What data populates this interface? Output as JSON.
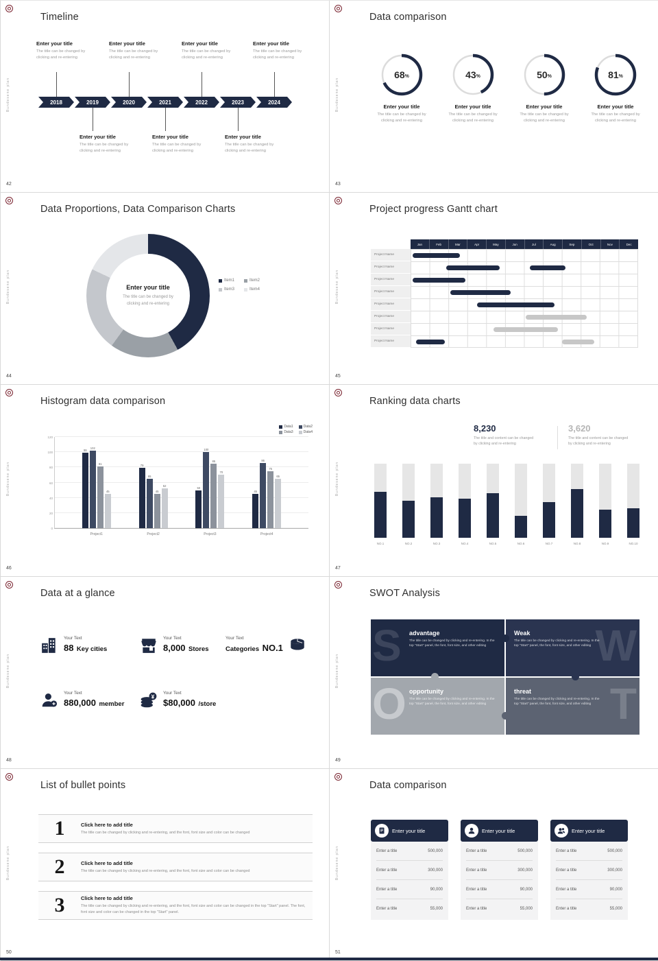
{
  "page": {
    "vertical_label": "Bundesene plan"
  },
  "shared": {
    "enter_title": "Enter your title",
    "cap1": "The title can be changed by",
    "cap2": "clicking and re-entering"
  },
  "timeline": {
    "number": "42",
    "title": "Timeline",
    "years": [
      "2018",
      "2019",
      "2020",
      "2021",
      "2022",
      "2023",
      "2024"
    ]
  },
  "rings": {
    "number": "43",
    "title": "Data comparison",
    "percent_sign": "%",
    "values": [
      68,
      43,
      50,
      81
    ]
  },
  "donut": {
    "number": "44",
    "title": "Data Proportions, Data Comparison Charts",
    "chart": {
      "type": "pie",
      "segments": [
        {
          "label": "Item1",
          "value": 42,
          "color": "#1F2A44"
        },
        {
          "label": "Item2",
          "value": 18,
          "color": "#9AA0A6"
        },
        {
          "label": "Item3",
          "value": 22,
          "color": "#C4C7CC"
        },
        {
          "label": "Item4",
          "value": 18,
          "color": "#E4E6E9"
        }
      ]
    }
  },
  "gantt": {
    "number": "45",
    "title": "Project progress Gantt chart",
    "months": [
      "Jan",
      "Feb",
      "Mar",
      "Apr",
      "May",
      "Jun",
      "Jul",
      "Aug",
      "Sep",
      "Oct",
      "Nov",
      "Dec"
    ],
    "row_label": "Project Name",
    "rows": 8,
    "bars": [
      {
        "row": 0,
        "start": 0.1,
        "end": 2.6,
        "color": "dark"
      },
      {
        "row": 1,
        "start": 1.9,
        "end": 4.7,
        "color": "dark"
      },
      {
        "row": 1,
        "start": 6.3,
        "end": 8.2,
        "color": "dark"
      },
      {
        "row": 2,
        "start": 0.1,
        "end": 2.9,
        "color": "dark"
      },
      {
        "row": 3,
        "start": 2.1,
        "end": 5.3,
        "color": "dark"
      },
      {
        "row": 4,
        "start": 3.5,
        "end": 7.6,
        "color": "dark"
      },
      {
        "row": 5,
        "start": 6.1,
        "end": 9.3,
        "color": "gray"
      },
      {
        "row": 6,
        "start": 4.4,
        "end": 7.8,
        "color": "gray"
      },
      {
        "row": 7,
        "start": 0.3,
        "end": 1.8,
        "color": "dark"
      },
      {
        "row": 7,
        "start": 8.0,
        "end": 9.7,
        "color": "gray"
      }
    ]
  },
  "histogram": {
    "number": "46",
    "title": "Histogram data comparison",
    "chart": {
      "type": "bar",
      "categories": [
        "Project1",
        "Project2",
        "Project3",
        "Project4"
      ],
      "series": [
        {
          "name": "Data1",
          "color": "#1F2A44",
          "values": [
            99,
            79,
            50,
            45
          ]
        },
        {
          "name": "Data2",
          "color": "#3E4A63",
          "values": [
            102,
            65,
            100,
            86
          ]
        },
        {
          "name": "Data3",
          "color": "#8C929C",
          "values": [
            81,
            45,
            85,
            75
          ]
        },
        {
          "name": "Data4",
          "color": "#C9CCD1",
          "values": [
            45,
            52,
            70,
            65
          ]
        }
      ],
      "ylim": [
        0,
        120
      ],
      "yticks": [
        0,
        20,
        40,
        60,
        80,
        100,
        120
      ]
    }
  },
  "ranking": {
    "number": "47",
    "title": "Ranking data charts",
    "stat1": "8,230",
    "stat2": "3,620",
    "stat_cap1": "The title and content can be changed",
    "stat_cap2": "by clicking and re-entering",
    "chart": {
      "type": "bar",
      "categories": [
        "NO.1",
        "NO.2",
        "NO.3",
        "NO.4",
        "NO.5",
        "NO.6",
        "NO.7",
        "NO.8",
        "NO.9",
        "NO.10"
      ],
      "values": [
        62,
        50,
        55,
        53,
        60,
        30,
        48,
        66,
        38,
        40
      ],
      "max": 100
    }
  },
  "glance": {
    "number": "48",
    "title": "Data at a glance",
    "label": "Your Text",
    "stats": [
      {
        "big": "88",
        "small": "Key cities"
      },
      {
        "big": "8,000",
        "small": "Stores"
      },
      {
        "small": "Categories",
        "big": "NO.1"
      },
      {
        "big": "880,000",
        "small": "member"
      },
      {
        "big": "$80,000",
        "small": "/store"
      }
    ]
  },
  "swot": {
    "number": "49",
    "title": "SWOT Analysis",
    "quads": [
      {
        "letter": "S",
        "heading": "advantage",
        "text": "The title can be changed by clicking and re-entering. In the top \"Start\" panel, the font, font size, and other editing"
      },
      {
        "letter": "W",
        "heading": "Weak",
        "text": "The title can be changed by clicking and re-entering. In the top \"Start\" panel, the font, font size, and other editing"
      },
      {
        "letter": "O",
        "heading": "opportunity",
        "text": "The title can be changed by clicking and re-entering. In the top \"Start\" panel, the font, font size, and other editing"
      },
      {
        "letter": "T",
        "heading": "threat",
        "text": "The title can be changed by clicking and re-entering. In the top \"Start\" panel, the font, font size, and other editing"
      }
    ]
  },
  "bullets": {
    "number": "50",
    "title": "List of bullet points",
    "items": [
      {
        "num": "1",
        "heading": "Click here to add title",
        "text": "The title can be changed by clicking and re-entering, and the font, font size and color can be changed"
      },
      {
        "num": "2",
        "heading": "Click here to add title",
        "text": "The title can be changed by clicking and re-entering, and the font, font size and color can be changed"
      },
      {
        "num": "3",
        "heading": "Click here to add title",
        "text": "The title can be changed by clicking and re-entering, and the font, font size and color can be changed in the top \"Start\" panel. The font, font size and color can be changed in the top \"Start\" panel."
      }
    ]
  },
  "compare": {
    "number": "51",
    "title": "Data comparison",
    "header": "Enter your title",
    "row_label": "Enter a title",
    "values": [
      "500,000",
      "300,000",
      "90,000",
      "55,000"
    ]
  }
}
